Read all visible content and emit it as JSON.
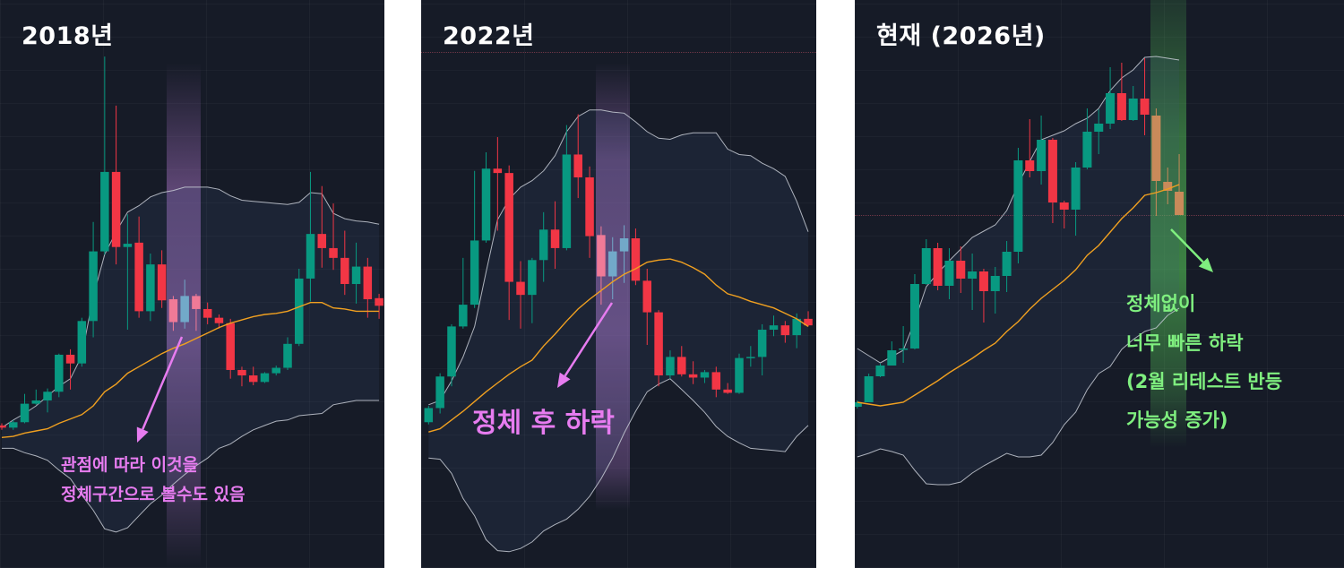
{
  "colors": {
    "up": "#089981",
    "down": "#f23645",
    "highlight_down": "#f07a97",
    "highlight_up": "#72a9c9",
    "faded": "#c98a5a",
    "middle_band": "#f0a020",
    "outer_band": "#c8cdd6",
    "purple_zone": "#b47ad2",
    "green_zone": "#5ad25a",
    "pink_text": "#e77cf0",
    "green_text": "#7fef7f"
  },
  "chart_data": [
    {
      "type": "candlestick",
      "title": "2018년",
      "indicator": "bollinger bands",
      "highlight_candles": [
        15,
        17
      ],
      "annotation": [
        "관점에 따라 이것을",
        "정체구간으로 볼수도 있음"
      ],
      "candles": [
        [
          243,
          245,
          239,
          241
        ],
        [
          241,
          248,
          239,
          246
        ],
        [
          246,
          272,
          245,
          263
        ],
        [
          263,
          276,
          262,
          266
        ],
        [
          266,
          277,
          255,
          274
        ],
        [
          274,
          309,
          269,
          308
        ],
        [
          308,
          313,
          276,
          300
        ],
        [
          300,
          342,
          297,
          339
        ],
        [
          339,
          430,
          324,
          403
        ],
        [
          403,
          582,
          400,
          476
        ],
        [
          476,
          537,
          391,
          407
        ],
        [
          407,
          437,
          331,
          410
        ],
        [
          411,
          435,
          342,
          348
        ],
        [
          348,
          401,
          339,
          391
        ],
        [
          391,
          404,
          351,
          358
        ],
        [
          359,
          362,
          330,
          338
        ],
        [
          338,
          377,
          332,
          362
        ],
        [
          362,
          364,
          330,
          350
        ],
        [
          350,
          356,
          336,
          342
        ],
        [
          342,
          345,
          332,
          337
        ],
        [
          337,
          341,
          286,
          294
        ],
        [
          294,
          297,
          279,
          289
        ],
        [
          289,
          297,
          280,
          283
        ],
        [
          283,
          292,
          282,
          291
        ],
        [
          291,
          298,
          289,
          296
        ],
        [
          296,
          324,
          294,
          318
        ],
        [
          318,
          387,
          316,
          378
        ],
        [
          378,
          476,
          357,
          419
        ],
        [
          419,
          463,
          388,
          406
        ],
        [
          406,
          447,
          386,
          397
        ],
        [
          397,
          422,
          363,
          373
        ],
        [
          373,
          411,
          355,
          389
        ],
        [
          389,
          397,
          342,
          359
        ],
        [
          360,
          364,
          341,
          353
        ]
      ],
      "bollinger": {
        "upper": [
          241,
          248,
          254,
          261,
          270,
          279,
          286,
          307,
          362,
          400,
          421,
          439,
          445,
          453,
          457,
          459,
          462,
          462,
          462,
          460,
          454,
          450,
          449,
          448,
          447,
          446,
          448,
          457,
          456,
          438,
          433,
          431,
          430,
          428
        ],
        "middle": [
          232,
          233,
          236,
          238,
          240,
          245,
          249,
          253,
          261,
          274,
          281,
          291,
          297,
          303,
          309,
          314,
          318,
          323,
          328,
          333,
          337,
          340,
          343,
          345,
          346,
          348,
          352,
          356,
          356,
          351,
          350,
          348,
          348,
          348
        ],
        "lower": [
          222,
          222,
          218,
          215,
          211,
          202,
          194,
          179,
          165,
          148,
          145,
          149,
          160,
          171,
          179,
          189,
          198,
          206,
          213,
          222,
          226,
          233,
          239,
          243,
          247,
          248,
          252,
          253,
          254,
          262,
          264,
          266,
          266,
          266
        ]
      }
    },
    {
      "type": "candlestick",
      "title": "2022년",
      "indicator": "bollinger bands",
      "highlight_candles": [
        15,
        17
      ],
      "annotation": [
        "정체 후 하락"
      ],
      "candles": [
        [
          246,
          261,
          244,
          259
        ],
        [
          259,
          291,
          254,
          288
        ],
        [
          288,
          336,
          279,
          334
        ],
        [
          334,
          397,
          332,
          354
        ],
        [
          354,
          477,
          351,
          413
        ],
        [
          413,
          494,
          411,
          479
        ],
        [
          479,
          508,
          422,
          475
        ],
        [
          475,
          482,
          340,
          375
        ],
        [
          375,
          394,
          332,
          363
        ],
        [
          363,
          397,
          337,
          395
        ],
        [
          395,
          439,
          375,
          423
        ],
        [
          423,
          449,
          387,
          406
        ],
        [
          406,
          519,
          404,
          492
        ],
        [
          492,
          529,
          452,
          471
        ],
        [
          471,
          481,
          397,
          417
        ],
        [
          418,
          426,
          354,
          380
        ],
        [
          380,
          416,
          359,
          403
        ],
        [
          403,
          427,
          374,
          415
        ],
        [
          415,
          424,
          372,
          376
        ],
        [
          376,
          387,
          317,
          347
        ],
        [
          347,
          349,
          279,
          289
        ],
        [
          289,
          312,
          286,
          306
        ],
        [
          306,
          316,
          288,
          290
        ],
        [
          290,
          302,
          281,
          287
        ],
        [
          287,
          294,
          282,
          292
        ],
        [
          292,
          297,
          269,
          276
        ],
        [
          276,
          282,
          272,
          273
        ],
        [
          273,
          309,
          272,
          305
        ],
        [
          305,
          316,
          297,
          306
        ],
        [
          306,
          336,
          289,
          331
        ],
        [
          331,
          344,
          325,
          335
        ],
        [
          335,
          339,
          319,
          326
        ],
        [
          326,
          346,
          314,
          341
        ],
        [
          341,
          348,
          334,
          335
        ]
      ],
      "bollinger": {
        "upper": [
          262,
          266,
          284,
          306,
          334,
          384,
          432,
          451,
          462,
          468,
          477,
          491,
          513,
          527,
          533,
          533,
          531,
          530,
          522,
          513,
          507,
          506,
          510,
          512,
          512,
          512,
          497,
          492,
          491,
          484,
          479,
          472,
          449,
          421
        ],
        "middle": [
          237,
          240,
          248,
          256,
          265,
          274,
          282,
          290,
          297,
          303,
          316,
          327,
          339,
          350,
          359,
          367,
          375,
          382,
          387,
          393,
          395,
          396,
          393,
          388,
          382,
          372,
          364,
          361,
          357,
          354,
          351,
          346,
          341,
          334
        ],
        "lower": [
          213,
          212,
          199,
          176,
          160,
          138,
          128,
          127,
          130,
          136,
          146,
          152,
          157,
          166,
          178,
          194,
          213,
          236,
          256,
          274,
          281,
          286,
          276,
          266,
          255,
          242,
          233,
          227,
          222,
          221,
          220,
          219,
          233,
          243
        ]
      }
    },
    {
      "type": "candlestick",
      "title": "현재 (2026년)",
      "indicator": "bollinger bands",
      "highlight_candles": [
        26,
        28
      ],
      "annotation": [
        "정체없이",
        "너무 빠른 하락",
        "(2월 리테스트 반등",
        "가능성 증가)"
      ],
      "candles": [
        [
          180,
          187,
          178,
          185
        ],
        [
          185,
          217,
          185,
          214
        ],
        [
          214,
          228,
          213,
          226
        ],
        [
          226,
          253,
          226,
          243
        ],
        [
          244,
          270,
          229,
          245
        ],
        [
          245,
          328,
          244,
          317
        ],
        [
          317,
          367,
          316,
          357
        ],
        [
          357,
          363,
          310,
          315
        ],
        [
          315,
          357,
          300,
          343
        ],
        [
          343,
          359,
          307,
          323
        ],
        [
          323,
          351,
          288,
          331
        ],
        [
          331,
          334,
          274,
          309
        ],
        [
          309,
          336,
          284,
          326
        ],
        [
          326,
          365,
          308,
          353
        ],
        [
          353,
          469,
          340,
          455
        ],
        [
          455,
          501,
          436,
          443
        ],
        [
          443,
          505,
          428,
          478
        ],
        [
          478,
          480,
          385,
          408
        ],
        [
          408,
          410,
          379,
          400
        ],
        [
          400,
          453,
          371,
          447
        ],
        [
          447,
          513,
          445,
          487
        ],
        [
          487,
          512,
          462,
          496
        ],
        [
          496,
          559,
          490,
          530
        ],
        [
          530,
          564,
          499,
          500
        ],
        [
          500,
          538,
          499,
          524
        ],
        [
          524,
          569,
          483,
          506
        ],
        [
          505,
          513,
          393,
          432
        ],
        [
          431,
          447,
          406,
          421
        ],
        [
          420,
          462,
          394,
          394
        ]
      ],
      "bollinger": {
        "upper": [
          245,
          237,
          229,
          236,
          243,
          276,
          314,
          329,
          343,
          356,
          369,
          376,
          383,
          399,
          428,
          454,
          478,
          483,
          488,
          496,
          502,
          513,
          533,
          547,
          556,
          570,
          571,
          569,
          567
        ],
        "middle": [
          185,
          183,
          181,
          183,
          185,
          193,
          201,
          209,
          218,
          226,
          234,
          243,
          251,
          264,
          275,
          289,
          301,
          311,
          321,
          333,
          349,
          360,
          375,
          390,
          402,
          416,
          419,
          423,
          428
        ],
        "lower": [
          124,
          128,
          133,
          130,
          126,
          109,
          94,
          93,
          93,
          96,
          106,
          114,
          121,
          128,
          124,
          124,
          126,
          140,
          160,
          174,
          199,
          217,
          225,
          244,
          255,
          264,
          268,
          282,
          290
        ]
      }
    }
  ]
}
